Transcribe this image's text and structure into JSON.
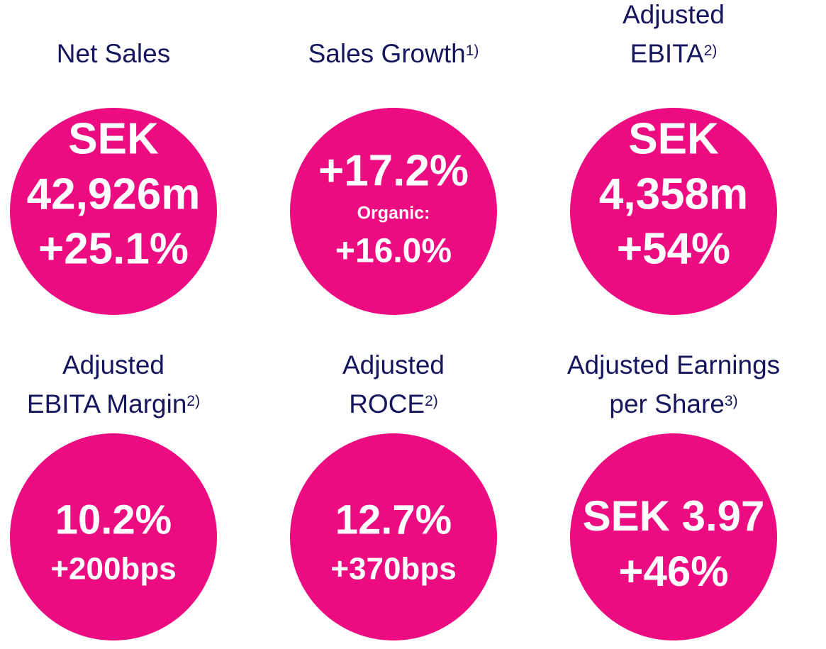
{
  "kpis": [
    {
      "title": [
        "Net Sales"
      ],
      "lines": [
        "SEK",
        "42,926m",
        "+25.1%"
      ]
    },
    {
      "title": [
        "Sales Growth"
      ],
      "note": "1)",
      "lines": [
        "+17.2%",
        "Organic:",
        "+16.0%"
      ]
    },
    {
      "title": [
        "Adjusted",
        "EBITA"
      ],
      "note": "2)",
      "lines": [
        "SEK",
        "4,358m",
        "+54%"
      ]
    },
    {
      "title": [
        "Adjusted",
        "EBITA Margin"
      ],
      "note": "2)",
      "lines": [
        "10.2%",
        "+200bps"
      ]
    },
    {
      "title": [
        "Adjusted",
        "ROCE"
      ],
      "note": "2)",
      "lines": [
        "12.7%",
        "+370bps"
      ]
    },
    {
      "title": [
        "Adjusted Earnings",
        "per Share"
      ],
      "note": "3)",
      "lines": [
        "SEK 3.97",
        "+46%"
      ]
    }
  ]
}
